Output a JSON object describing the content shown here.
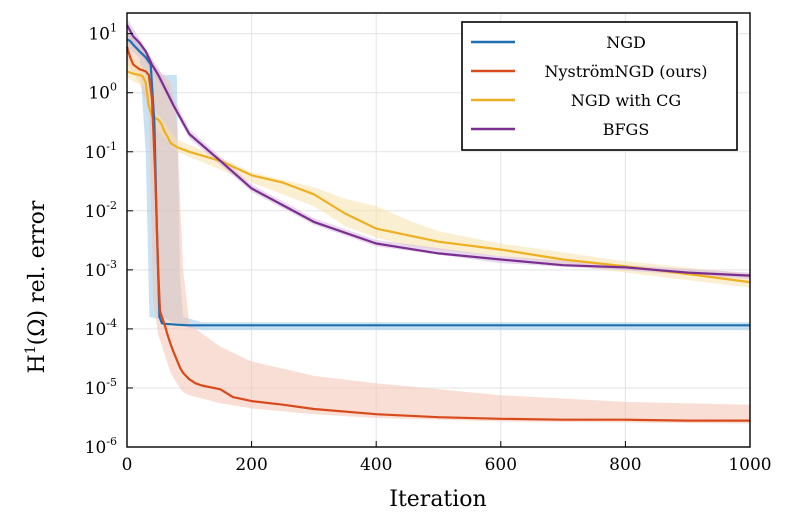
{
  "chart_data": {
    "type": "line",
    "title": "",
    "xlabel": "Iteration",
    "ylabel_base": "H",
    "ylabel_sup": "1",
    "ylabel_rest": "(Ω) rel. error",
    "xlim": [
      0,
      1000
    ],
    "ylim_log10": [
      -6,
      1.35
    ],
    "yscale": "log",
    "x_ticks": [
      0,
      200,
      400,
      600,
      800,
      1000
    ],
    "x_tick_labels": [
      "0",
      "200",
      "400",
      "600",
      "800",
      "1000"
    ],
    "y_ticks_exp": [
      1,
      0,
      -1,
      -2,
      -3,
      -4,
      -5,
      -6
    ],
    "y_tick_labels": [
      "10^1",
      "10^0",
      "10^-1",
      "10^-2",
      "10^-3",
      "10^-4",
      "10^-5",
      "10^-6"
    ],
    "legend_position": "top-right",
    "grid": true,
    "series": [
      {
        "name": "NGD",
        "color": "#1f6fb0",
        "band_color": "#9ccbea",
        "x": [
          0,
          5,
          10,
          20,
          30,
          38,
          44,
          48,
          52,
          56,
          60,
          70,
          80,
          100,
          200,
          400,
          600,
          800,
          1000
        ],
        "y": [
          8,
          7.5,
          6.5,
          5,
          4,
          3,
          0.3,
          0.005,
          0.00016,
          0.000125,
          0.000122,
          0.00012,
          0.000118,
          0.000115,
          0.000115,
          0.000115,
          0.000115,
          0.000115,
          0.000115
        ],
        "band": [
          {
            "x": 0,
            "lo": 6,
            "hi": 11
          },
          {
            "x": 20,
            "lo": 4,
            "hi": 7
          },
          {
            "x": 30,
            "lo": 0.1,
            "hi": 5
          },
          {
            "x": 36,
            "lo": 0.00016,
            "hi": 3
          },
          {
            "x": 45,
            "lo": 0.00015,
            "hi": 2
          },
          {
            "x": 60,
            "lo": 0.00015,
            "hi": 2
          },
          {
            "x": 80,
            "lo": 0.00012,
            "hi": 2
          },
          {
            "x": 85,
            "lo": 0.00011,
            "hi": 0.0008
          },
          {
            "x": 90,
            "lo": 0.00011,
            "hi": 0.00016
          },
          {
            "x": 120,
            "lo": 9.5e-05,
            "hi": 0.00013
          },
          {
            "x": 1000,
            "lo": 9.5e-05,
            "hi": 0.00013
          }
        ]
      },
      {
        "name": "NyströmNGD (ours)",
        "color": "#d84a1b",
        "band_color": "#f3c3b0",
        "x": [
          0,
          5,
          10,
          20,
          30,
          35,
          40,
          45,
          50,
          53,
          56,
          60,
          65,
          70,
          75,
          80,
          85,
          90,
          100,
          110,
          120,
          150,
          170,
          200,
          250,
          300,
          400,
          500,
          600,
          700,
          800,
          900,
          1000
        ],
        "y": [
          6,
          4,
          3,
          2.5,
          2.3,
          2,
          0.8,
          0.05,
          0.001,
          0.0002,
          0.00016,
          0.00012,
          8e-05,
          5.5e-05,
          4e-05,
          3e-05,
          2.2e-05,
          1.8e-05,
          1.4e-05,
          1.2e-05,
          1.1e-05,
          9.5e-06,
          7e-06,
          6e-06,
          5.2e-06,
          4.4e-06,
          3.6e-06,
          3.2e-06,
          3e-06,
          2.9e-06,
          2.9e-06,
          2.8e-06,
          2.8e-06
        ],
        "band": [
          {
            "x": 0,
            "lo": 3,
            "hi": 11
          },
          {
            "x": 20,
            "lo": 1.5,
            "hi": 6
          },
          {
            "x": 35,
            "lo": 0.5,
            "hi": 4
          },
          {
            "x": 42,
            "lo": 0.0003,
            "hi": 3
          },
          {
            "x": 50,
            "lo": 8e-05,
            "hi": 2.5
          },
          {
            "x": 70,
            "lo": 1.8e-05,
            "hi": 1.5
          },
          {
            "x": 80,
            "lo": 1.2e-05,
            "hi": 0.3
          },
          {
            "x": 90,
            "lo": 8.5e-06,
            "hi": 0.001
          },
          {
            "x": 100,
            "lo": 7.5e-06,
            "hi": 0.00012
          },
          {
            "x": 150,
            "lo": 5.5e-06,
            "hi": 5e-05
          },
          {
            "x": 200,
            "lo": 4.5e-06,
            "hi": 2.8e-05
          },
          {
            "x": 300,
            "lo": 3.6e-06,
            "hi": 1.6e-05
          },
          {
            "x": 400,
            "lo": 3.1e-06,
            "hi": 1.2e-05
          },
          {
            "x": 600,
            "lo": 2.7e-06,
            "hi": 7.5e-06
          },
          {
            "x": 800,
            "lo": 2.6e-06,
            "hi": 5.8e-06
          },
          {
            "x": 1000,
            "lo": 2.5e-06,
            "hi": 5.2e-06
          }
        ]
      },
      {
        "name": "NGD with CG",
        "color": "#eeaf22",
        "band_color": "#f8e2ad",
        "x": [
          0,
          5,
          10,
          20,
          25,
          30,
          35,
          40,
          50,
          55,
          60,
          65,
          70,
          75,
          80,
          100,
          150,
          200,
          250,
          300,
          350,
          400,
          500,
          600,
          700,
          800,
          900,
          1000
        ],
        "y": [
          2.3,
          2.2,
          2.1,
          2.0,
          1.9,
          1.5,
          0.6,
          0.4,
          0.35,
          0.3,
          0.22,
          0.18,
          0.14,
          0.13,
          0.12,
          0.1,
          0.07,
          0.04,
          0.03,
          0.019,
          0.009,
          0.005,
          0.003,
          0.0022,
          0.0015,
          0.00115,
          0.00085,
          0.00062
        ],
        "band": [
          {
            "x": 0,
            "lo": 1.8,
            "hi": 5
          },
          {
            "x": 30,
            "lo": 1.2,
            "hi": 2.5
          },
          {
            "x": 40,
            "lo": 0.3,
            "hi": 0.6
          },
          {
            "x": 80,
            "lo": 0.1,
            "hi": 0.16
          },
          {
            "x": 150,
            "lo": 0.05,
            "hi": 0.08
          },
          {
            "x": 200,
            "lo": 0.03,
            "hi": 0.045
          },
          {
            "x": 300,
            "lo": 0.012,
            "hi": 0.025
          },
          {
            "x": 350,
            "lo": 0.0055,
            "hi": 0.016
          },
          {
            "x": 400,
            "lo": 0.0035,
            "hi": 0.012
          },
          {
            "x": 450,
            "lo": 0.0026,
            "hi": 0.007
          },
          {
            "x": 500,
            "lo": 0.0022,
            "hi": 0.0045
          },
          {
            "x": 600,
            "lo": 0.0017,
            "hi": 0.0028
          },
          {
            "x": 800,
            "lo": 0.0009,
            "hi": 0.0014
          },
          {
            "x": 1000,
            "lo": 0.0005,
            "hi": 0.00085
          }
        ]
      },
      {
        "name": "BFGS",
        "color": "#7a2e8f",
        "band_color": "#d5b8df",
        "x": [
          0,
          10,
          20,
          30,
          40,
          50,
          75,
          100,
          150,
          200,
          300,
          400,
          500,
          600,
          700,
          800,
          900,
          1000
        ],
        "y": [
          14,
          9,
          7,
          5,
          3,
          2,
          0.6,
          0.2,
          0.07,
          0.024,
          0.0065,
          0.0028,
          0.0019,
          0.0015,
          0.0012,
          0.0011,
          0.0009,
          0.0008
        ],
        "band": [
          {
            "x": 0,
            "lo": 10,
            "hi": 18
          },
          {
            "x": 50,
            "lo": 1.6,
            "hi": 2.6
          },
          {
            "x": 100,
            "lo": 0.17,
            "hi": 0.24
          },
          {
            "x": 200,
            "lo": 0.021,
            "hi": 0.028
          },
          {
            "x": 300,
            "lo": 0.0058,
            "hi": 0.0075
          },
          {
            "x": 400,
            "lo": 0.0025,
            "hi": 0.0032
          },
          {
            "x": 600,
            "lo": 0.0013,
            "hi": 0.0017
          },
          {
            "x": 800,
            "lo": 0.00098,
            "hi": 0.0012
          },
          {
            "x": 1000,
            "lo": 0.0007,
            "hi": 0.0009
          }
        ]
      }
    ]
  }
}
